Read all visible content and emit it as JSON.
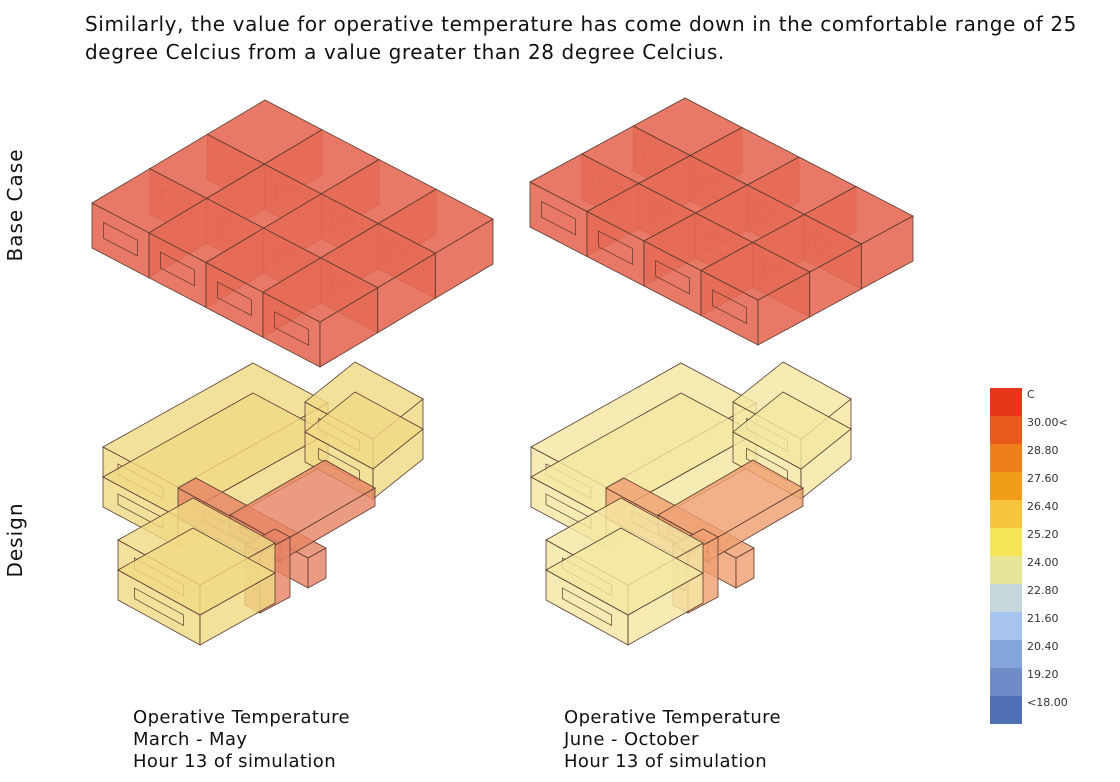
{
  "paragraph": "Similarly, the value for operative temperature has come down in the comfortable range of 25 degree Celcius from a value greater than 28 degree Celcius.",
  "row_labels": [
    "Base Case",
    "Design"
  ],
  "captions": [
    [
      "Operative Temperature",
      "March - May",
      "Hour 13 of simulation"
    ],
    [
      "Operative Temperature",
      "June - October",
      "Hour 13 of simulation"
    ]
  ],
  "legend": {
    "items": [
      {
        "label": "C",
        "color": "#e8361b"
      },
      {
        "label": "30.00<",
        "color": "#ea5a1c"
      },
      {
        "label": "28.80",
        "color": "#ef7f1a"
      },
      {
        "label": "27.60",
        "color": "#f09d18"
      },
      {
        "label": "26.40",
        "color": "#f5c63c"
      },
      {
        "label": "25.20",
        "color": "#f5e456"
      },
      {
        "label": "24.00",
        "color": "#e6e59a"
      },
      {
        "label": "22.80",
        "color": "#c6d8dc"
      },
      {
        "label": "21.60",
        "color": "#a8c4ee"
      },
      {
        "label": "20.40",
        "color": "#84a4dc"
      },
      {
        "label": "19.20",
        "color": "#6d8cc8"
      },
      {
        "label": "<18.00",
        "color": "#4f6fb5"
      }
    ]
  }
}
